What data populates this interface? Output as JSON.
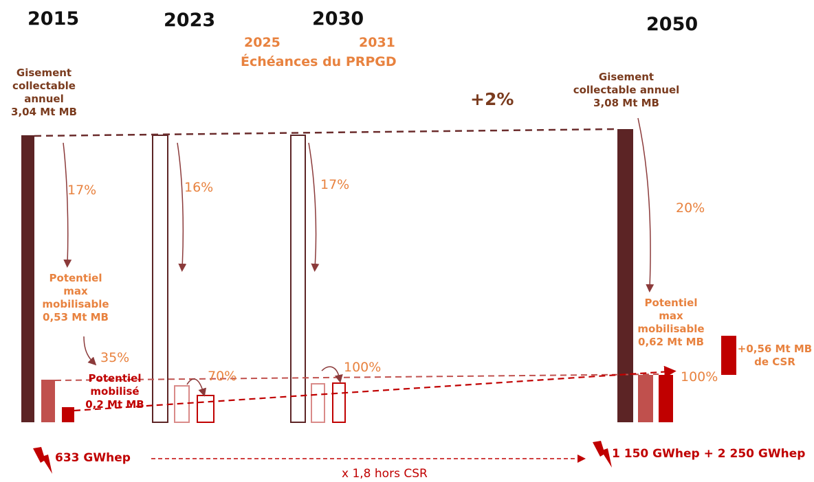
{
  "years": [
    "2015",
    "2023",
    "2030",
    "2050"
  ],
  "prpgd": {
    "y1": "2025",
    "y2": "2031",
    "label": "Échéances du PRPGD"
  },
  "growth": "+2%",
  "gisement_2015": [
    "Gisement",
    "collectable",
    "annuel",
    "3,04 Mt MB"
  ],
  "gisement_2050": [
    "Gisement",
    "collectable annuel",
    "3,08 Mt MB"
  ],
  "shares": {
    "s2015": "17%",
    "s2023": "16%",
    "s2030": "17%",
    "s2050": "20%"
  },
  "potentiel_2015": [
    "Potentiel",
    "max",
    "mobilisable",
    "0,53 Mt MB"
  ],
  "potentiel_2050": [
    "Potentiel",
    "max",
    "mobilisable",
    "0,62 Mt MB"
  ],
  "mobilise_2015": [
    "Potentiel",
    "mobilisé",
    "0,2 Mt MB"
  ],
  "rates": {
    "r2015": "35%",
    "r2023": "70%",
    "r2030": "100%",
    "r2050": "100%"
  },
  "csr": [
    "+0,56 Mt MB",
    "de CSR"
  ],
  "energy": {
    "e2015": "633 GWhep",
    "e2050": "1 150 GWhep + 2 250 GWhep",
    "factor": "x 1,8 hors CSR"
  },
  "colors": {
    "dark": "#5C2425",
    "light": "#C0504D",
    "red": "#C00000",
    "orange": "#E8823F",
    "brown": "#7A3B1E"
  }
}
